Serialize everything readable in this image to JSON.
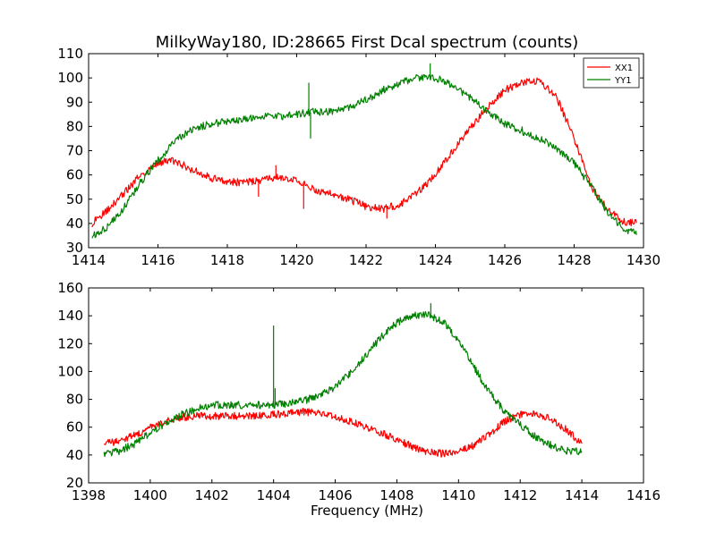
{
  "chart_data": [
    {
      "type": "line",
      "title": "MilkyWay180, ID:28665 First Dcal spectrum (counts)",
      "xlabel": "",
      "ylabel": "",
      "xlim": [
        1414,
        1430
      ],
      "ylim": [
        30,
        110
      ],
      "xticks": [
        "1414",
        "1416",
        "1418",
        "1420",
        "1422",
        "1424",
        "1426",
        "1428",
        "1430"
      ],
      "yticks": [
        "30",
        "40",
        "50",
        "60",
        "70",
        "80",
        "90",
        "100",
        "110"
      ],
      "legend": {
        "placement": "top-right"
      },
      "series": [
        {
          "name": "XX1",
          "color": "#ff0000",
          "x": [
            1414.1,
            1414.5,
            1415.0,
            1415.5,
            1416.0,
            1416.3,
            1416.6,
            1417.0,
            1417.5,
            1418.0,
            1418.5,
            1419.0,
            1419.5,
            1420.0,
            1420.5,
            1421.0,
            1421.5,
            1422.0,
            1422.5,
            1423.0,
            1423.5,
            1424.0,
            1424.5,
            1425.0,
            1425.5,
            1426.0,
            1426.5,
            1427.0,
            1427.5,
            1428.0,
            1428.5,
            1429.0,
            1429.5,
            1429.8
          ],
          "y": [
            40,
            45,
            52,
            60,
            65,
            66,
            65,
            62,
            59,
            57,
            57,
            58,
            59,
            58,
            54,
            52,
            50,
            47,
            46,
            48,
            53,
            60,
            70,
            79,
            88,
            95,
            98,
            99,
            92,
            75,
            55,
            45,
            40,
            41
          ],
          "spikes": [
            {
              "x": 1420.2,
              "y": 46
            },
            {
              "x": 1419.4,
              "y": 64
            },
            {
              "x": 1418.9,
              "y": 51
            },
            {
              "x": 1422.6,
              "y": 42
            }
          ]
        },
        {
          "name": "YY1",
          "color": "#008000",
          "x": [
            1414.1,
            1414.5,
            1415.0,
            1415.5,
            1416.0,
            1416.5,
            1417.0,
            1417.5,
            1418.0,
            1418.5,
            1419.0,
            1419.5,
            1420.0,
            1420.5,
            1421.0,
            1421.5,
            1422.0,
            1422.5,
            1423.0,
            1423.5,
            1424.0,
            1424.5,
            1425.0,
            1425.5,
            1426.0,
            1426.5,
            1427.0,
            1427.5,
            1428.0,
            1428.5,
            1429.0,
            1429.5,
            1429.8
          ],
          "y": [
            35,
            38,
            46,
            57,
            66,
            74,
            79,
            81,
            82,
            83,
            84,
            84,
            85,
            86,
            86,
            88,
            91,
            95,
            98,
            100,
            100,
            97,
            92,
            86,
            81,
            78,
            75,
            71,
            65,
            55,
            44,
            37,
            36
          ],
          "spikes": [
            {
              "x": 1420.35,
              "y": 98
            },
            {
              "x": 1420.4,
              "y": 75
            },
            {
              "x": 1423.85,
              "y": 106
            },
            {
              "x": 1426.5,
              "y": 80
            }
          ]
        }
      ]
    },
    {
      "type": "line",
      "title": "",
      "xlabel": "Frequency (MHz)",
      "ylabel": "",
      "xlim": [
        1398,
        1416
      ],
      "ylim": [
        20,
        160
      ],
      "xticks": [
        "1398",
        "1400",
        "1402",
        "1404",
        "1406",
        "1408",
        "1410",
        "1412",
        "1414",
        "1416"
      ],
      "yticks": [
        "20",
        "40",
        "60",
        "80",
        "100",
        "120",
        "140",
        "160"
      ],
      "series": [
        {
          "color": "#ff0000",
          "x": [
            1398.5,
            1399.0,
            1399.5,
            1400.0,
            1400.5,
            1401.0,
            1401.5,
            1402.0,
            1402.5,
            1403.0,
            1403.5,
            1404.0,
            1404.5,
            1405.0,
            1405.5,
            1406.0,
            1406.5,
            1407.0,
            1407.5,
            1408.0,
            1408.5,
            1409.0,
            1409.5,
            1410.0,
            1410.5,
            1411.0,
            1411.5,
            1412.0,
            1412.5,
            1413.0,
            1413.5,
            1414.0
          ],
          "y": [
            48,
            50,
            54,
            60,
            64,
            67,
            68,
            68,
            68,
            68,
            68,
            69,
            70,
            71,
            70,
            68,
            64,
            60,
            56,
            51,
            46,
            42,
            41,
            43,
            47,
            55,
            64,
            69,
            70,
            66,
            58,
            48
          ]
        },
        {
          "color": "#008000",
          "x": [
            1398.5,
            1399.0,
            1399.5,
            1400.0,
            1400.5,
            1401.0,
            1401.5,
            1402.0,
            1402.5,
            1403.0,
            1403.5,
            1404.0,
            1404.5,
            1405.0,
            1405.5,
            1406.0,
            1406.5,
            1407.0,
            1407.5,
            1408.0,
            1408.5,
            1409.0,
            1409.5,
            1410.0,
            1410.5,
            1411.0,
            1411.5,
            1412.0,
            1412.5,
            1413.0,
            1413.5,
            1414.0
          ],
          "y": [
            41,
            43,
            48,
            56,
            63,
            69,
            73,
            76,
            76,
            76,
            76,
            76,
            77,
            79,
            83,
            89,
            99,
            112,
            125,
            135,
            140,
            141,
            136,
            122,
            103,
            85,
            71,
            62,
            53,
            47,
            43,
            42
          ],
          "spikes": [
            {
              "x": 1404.0,
              "y": 133
            },
            {
              "x": 1404.05,
              "y": 88
            },
            {
              "x": 1409.1,
              "y": 149
            }
          ]
        }
      ]
    }
  ]
}
